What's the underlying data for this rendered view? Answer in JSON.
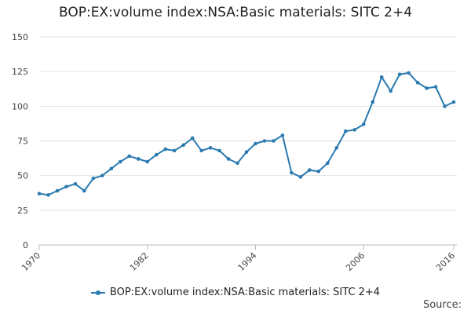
{
  "chart_data": {
    "type": "line",
    "title": "BOP:EX:volume index:NSA:Basic materials: SITC 2+4",
    "xlabel": "",
    "ylabel": "",
    "xlim": [
      1970,
      2016
    ],
    "ylim": [
      0,
      150
    ],
    "y_ticks": [
      0,
      25,
      50,
      75,
      100,
      125,
      150
    ],
    "x_ticks": [
      1970,
      1982,
      1994,
      2006,
      2016
    ],
    "grid": "horizontal",
    "legend_position": "bottom",
    "series": [
      {
        "name": "BOP:EX:volume index:NSA:Basic materials: SITC 2+4",
        "color": "#2a7ab0",
        "x": [
          1970,
          1971,
          1972,
          1973,
          1974,
          1975,
          1976,
          1977,
          1978,
          1979,
          1980,
          1981,
          1982,
          1983,
          1984,
          1985,
          1986,
          1987,
          1988,
          1989,
          1990,
          1991,
          1992,
          1993,
          1994,
          1995,
          1996,
          1997,
          1998,
          1999,
          2000,
          2001,
          2002,
          2003,
          2004,
          2005,
          2006,
          2007,
          2008,
          2009,
          2010,
          2011,
          2012,
          2013,
          2014,
          2015,
          2016
        ],
        "values": [
          37,
          36,
          39,
          42,
          44,
          39,
          48,
          50,
          55,
          60,
          64,
          62,
          60,
          65,
          69,
          68,
          72,
          77,
          68,
          70,
          68,
          62,
          59,
          67,
          73,
          75,
          75,
          79,
          52,
          49,
          54,
          53,
          59,
          70,
          82,
          83,
          87,
          103,
          121,
          111,
          123,
          124,
          117,
          113,
          114,
          100,
          103
        ]
      }
    ]
  },
  "legend": {
    "label": "BOP:EX:volume index:NSA:Basic materials: SITC 2+4"
  },
  "footer": {
    "source_label": "Source:"
  }
}
